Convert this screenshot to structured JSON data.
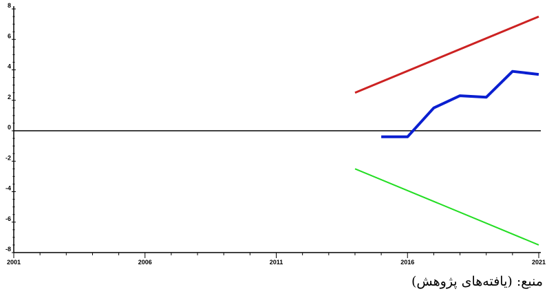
{
  "chart_data": {
    "type": "line",
    "x_ticks": [
      "2001",
      "2006",
      "2011",
      "2016",
      "2021"
    ],
    "y_ticks": [
      "8",
      "6",
      "4",
      "2",
      "0",
      "-2",
      "-4",
      "-6",
      "-8"
    ],
    "xlim": [
      2001,
      2021
    ],
    "ylim": [
      -8,
      8
    ],
    "zero_line": true,
    "grid": false,
    "series": [
      {
        "color": "#cc2222",
        "width": 3,
        "x": [
          2014,
          2021
        ],
        "y": [
          2.5,
          7.5
        ]
      },
      {
        "color": "#22dd22",
        "width": 2,
        "x": [
          2014,
          2021
        ],
        "y": [
          -2.5,
          -7.5
        ]
      },
      {
        "color": "#0a1fd0",
        "width": 4,
        "x": [
          2015,
          2016,
          2017,
          2018,
          2019,
          2020,
          2021
        ],
        "y": [
          -0.4,
          -0.4,
          1.5,
          2.3,
          2.2,
          3.9,
          3.7
        ]
      }
    ]
  },
  "source_note": "منبع: (یافته‌های پژوهش)"
}
